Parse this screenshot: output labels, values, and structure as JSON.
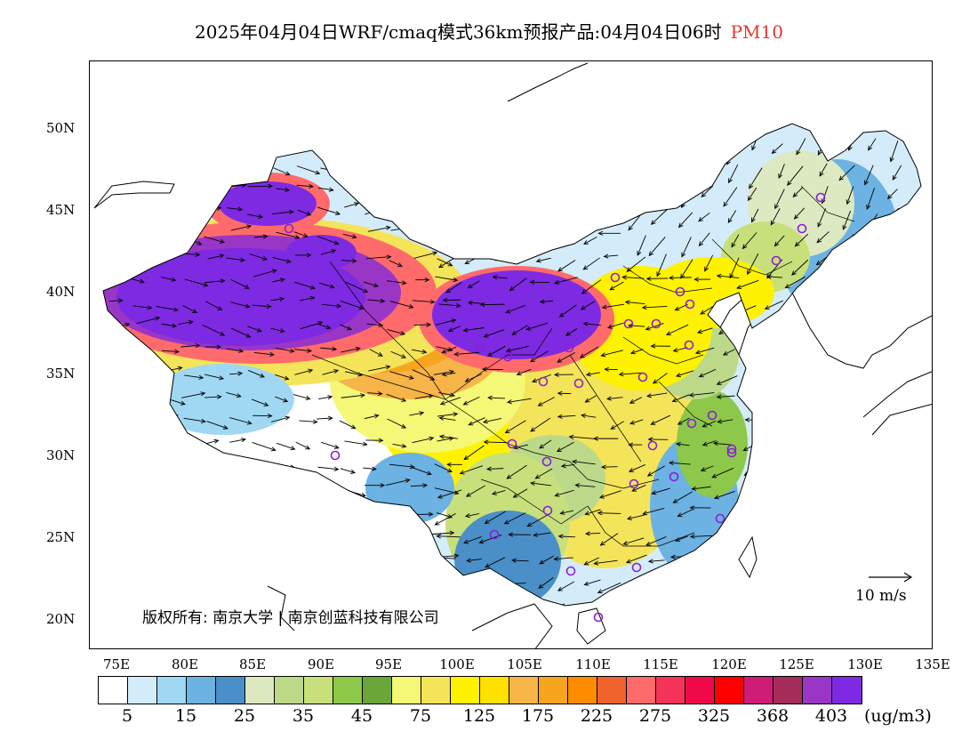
{
  "title": {
    "main": "2025年04月04日WRF/cmaq模式36km预报产品:04月04日06时",
    "variable": "PM10"
  },
  "axes": {
    "lat_labels": [
      "50N",
      "45N",
      "40N",
      "35N",
      "30N",
      "25N",
      "20N"
    ],
    "lon_labels": [
      "75E",
      "80E",
      "85E",
      "90E",
      "95E",
      "100E",
      "105E",
      "110E",
      "115E",
      "120E",
      "125E",
      "130E",
      "135E"
    ]
  },
  "colorbar": {
    "colors": [
      "#ffffff",
      "#d4ecf9",
      "#a0d8f3",
      "#6cb2e2",
      "#4a8fc7",
      "#dde9c0",
      "#bcd98a",
      "#c8e07b",
      "#8ec84a",
      "#6aa63a",
      "#f4f876",
      "#f4e45a",
      "#fff200",
      "#ffe100",
      "#f7b448",
      "#f7a41f",
      "#ff8c00",
      "#f0622e",
      "#ff6b6b",
      "#f33358",
      "#f00a4a",
      "#ff0000",
      "#cf1c77",
      "#a52d5a",
      "#9a36c6",
      "#7e2ae2"
    ],
    "labels": [
      "5",
      "15",
      "25",
      "35",
      "45",
      "75",
      "125",
      "175",
      "225",
      "275",
      "325",
      "368",
      "403"
    ],
    "unit": "(ug/m3)"
  },
  "copyright": "版权所有: 南京大学 | 南京创蓝科技有限公司",
  "reference_vector": {
    "label": "10 m/s"
  },
  "map": {
    "variable": "PM10",
    "extent_lon": [
      73,
      135
    ],
    "extent_lat": [
      18,
      54
    ],
    "region_levels": [
      {
        "region": "Tarim basin (Xinjiang)",
        "range_ug_m3": "368-403+"
      },
      {
        "region": "Junggar basin",
        "range_ug_m3": "368-403+"
      },
      {
        "region": "Inner Mongolia / Gansu corridor",
        "range_ug_m3": "368-403+"
      },
      {
        "region": "Qinghai / Gansu",
        "range_ug_m3": "175-275"
      },
      {
        "region": "Sichuan / central China",
        "range_ug_m3": "75-125"
      },
      {
        "region": "Tibet",
        "range_ug_m3": "5-25"
      },
      {
        "region": "Northeast China",
        "range_ug_m3": "15-45"
      },
      {
        "region": "Southeast coast",
        "range_ug_m3": "15-35"
      }
    ]
  }
}
